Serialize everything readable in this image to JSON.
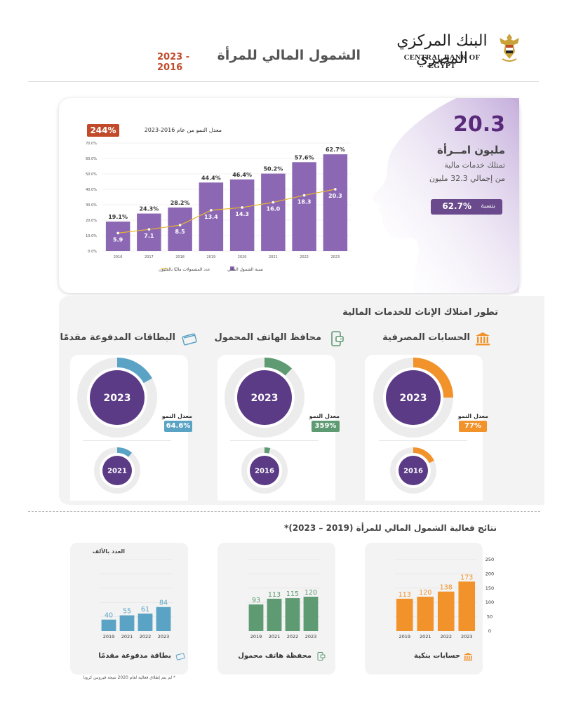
{
  "header": {
    "title": "الشمول المالي للمرأة",
    "years": "2023 - 2016",
    "logo_ar": "البنك المركزي المصري",
    "logo_en": "CENTRAL BANK OF EGYPT"
  },
  "stat": {
    "number": "20.3",
    "line1": "مليون امــرأة",
    "line2": "تمتلك خدمات مالية",
    "line3": "من إجمالي 32.3 مليون",
    "ratio_label": "بنسبة",
    "ratio_value": "62.7%"
  },
  "growth_label": "معدل النمو من عام 2016-2023",
  "growth_value": "244%",
  "colors": {
    "purple": "#8c68b4",
    "purple_dark": "#5b3a86",
    "line": "#e8b62a",
    "orange": "#f2922a",
    "green": "#5e9a72",
    "blue": "#5aa3c4",
    "badge_red": "#c04a2a"
  },
  "chart_data": [
    {
      "type": "bar",
      "categories": [
        "2016",
        "2017",
        "2018",
        "2019",
        "2020",
        "2021",
        "2022",
        "2023"
      ],
      "series": [
        {
          "name": "نسبة الشمول المالي",
          "values": [
            19.1,
            24.3,
            28.2,
            44.4,
            46.4,
            50.2,
            57.6,
            62.7
          ],
          "labels": [
            "19.1%",
            "24.3%",
            "28.2%",
            "44.4%",
            "46.4%",
            "50.2%",
            "57.6%",
            "62.7%"
          ]
        },
        {
          "name": "عدد المشمولات ماليًا بالمليون",
          "values": [
            5.9,
            7.1,
            8.5,
            13.4,
            14.3,
            16.0,
            18.3,
            20.3
          ],
          "labels": [
            "5.9",
            "7.1",
            "8.5",
            "13.4",
            "14.3",
            "16.0",
            "18.3",
            "20.3"
          ],
          "type": "line"
        }
      ],
      "yticks": [
        "70.0%",
        "60.0%",
        "50.0%",
        "40.0%",
        "30.0%",
        "20.0%",
        "10.0%",
        "0.0%"
      ],
      "ylim": [
        0,
        70
      ],
      "legend_position": "bottom"
    },
    {
      "type": "bar",
      "title": "حسابات بنكية",
      "categories": [
        "2019",
        "2021",
        "2022",
        "2023"
      ],
      "values": [
        113,
        120,
        138,
        173
      ],
      "ylim": [
        0,
        250
      ],
      "yticks": [
        "250",
        "200",
        "150",
        "100",
        "50",
        "0"
      ]
    },
    {
      "type": "bar",
      "title": "محفظة هاتف محمول",
      "categories": [
        "2019",
        "2021",
        "2022",
        "2023"
      ],
      "values": [
        93,
        113,
        115,
        120
      ],
      "ylim": [
        0,
        250
      ]
    },
    {
      "type": "bar",
      "title": "بطاقة مدفوعة مقدمًا",
      "categories": [
        "2019",
        "2021",
        "2022",
        "2023"
      ],
      "values": [
        40,
        55,
        61,
        84
      ],
      "ylim": [
        0,
        250
      ]
    }
  ],
  "section2": {
    "title": "تطور امتلاك الإناث للخدمات المالية",
    "cards": [
      {
        "title": "الحسابات المصرفية",
        "growth_label": "معدل النمو",
        "growth": "77%",
        "year_big": "2023",
        "year_small": "2016",
        "share_big": 0.25,
        "share_small": 0.18,
        "color": "#f2922a",
        "icon": "bank-icon"
      },
      {
        "title": "محافظ الهاتف المحمول",
        "growth_label": "معدل النمو",
        "growth": "359%",
        "year_big": "2023",
        "year_small": "2016",
        "share_big": 0.12,
        "share_small": 0.04,
        "color": "#5e9a72",
        "icon": "mobile-wallet-icon"
      },
      {
        "title": "البطاقات المدفوعة مقدمًا",
        "growth_label": "معدل النمو",
        "growth": "64.6%",
        "year_big": "2023",
        "year_small": "2021",
        "share_big": 0.17,
        "share_small": 0.11,
        "color": "#5aa3c4",
        "icon": "card-icon"
      }
    ]
  },
  "section3": {
    "title": "نتائج فعالية الشمول المالي للمرأة (2019 – 2023)*",
    "unit": "العدد بالألف",
    "footnote": "* لم يتم إطلاق فعالية لعام 2020 نتيجة فيروس كرونا"
  }
}
